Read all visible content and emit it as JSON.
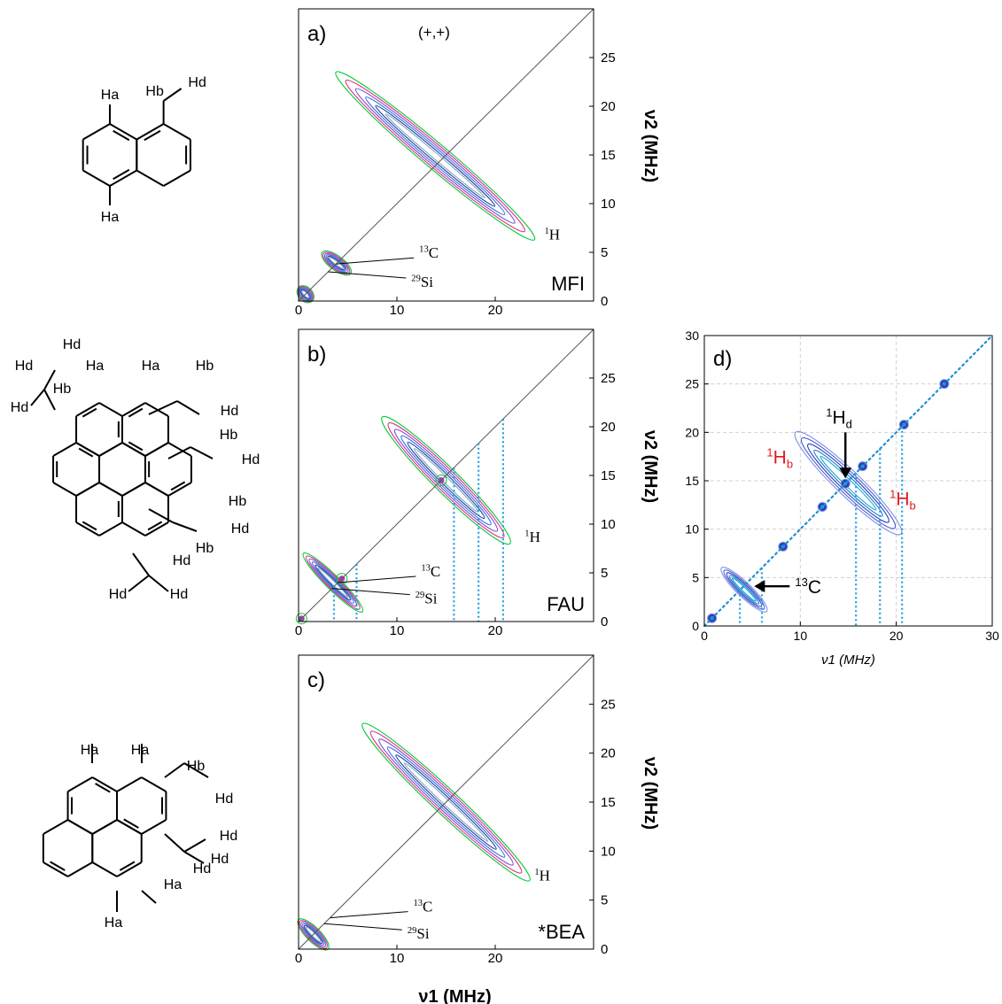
{
  "molecules": [
    {
      "labels": {
        "a1": "Ha",
        "a2": "Ha",
        "b": "Hb",
        "d": "Hd"
      }
    },
    {
      "labels": {
        "d1": "Hd",
        "d2": "Hd",
        "d3": "Hd",
        "a1": "Ha",
        "a2": "Ha",
        "b1": "Hb",
        "b2": "Hb",
        "b3": "Hb",
        "b4": "Hb",
        "b5": "Hb",
        "b6": "Hb",
        "d4": "Hd",
        "d5": "Hd",
        "d6": "Hd",
        "d7": "Hd",
        "d8": "Hd",
        "d9": "Hd"
      }
    },
    {
      "labels": {
        "a1": "Ha",
        "a2": "Ha",
        "a3": "Ha",
        "a4": "Ha",
        "b": "Hb",
        "d1": "Hd",
        "d2": "Hd",
        "d3": "Hd",
        "d4": "Hd"
      }
    }
  ],
  "chart_data": [
    {
      "id": "a",
      "type": "contour",
      "panel_label": "a)",
      "sign_label": "(+,+)",
      "sample": "MFI",
      "xlabel": "",
      "ylabel": "ν2 (MHz)",
      "xlim": [
        0,
        30
      ],
      "ylim": [
        0,
        30
      ],
      "xticks": [
        "0",
        "10",
        "20"
      ],
      "yticks": [
        "0",
        "5",
        "10",
        "15",
        "20",
        "25"
      ],
      "diagonal": [
        [
          0,
          0
        ],
        [
          30,
          30
        ]
      ],
      "ridges": [
        {
          "name": "1H",
          "from": [
            3.8,
            23.5
          ],
          "to": [
            24.0,
            6.3
          ]
        },
        {
          "name": "",
          "from": [
            2.4,
            5.0
          ],
          "to": [
            5.3,
            2.8
          ]
        },
        {
          "name": "",
          "from": [
            0.0,
            1.4
          ],
          "to": [
            1.4,
            0.0
          ]
        }
      ],
      "annotations": [
        {
          "text": "1H",
          "sup": "1",
          "base": "H",
          "at": [
            25.0,
            6.3
          ]
        },
        {
          "text": "13C",
          "sup": "13",
          "base": "C",
          "target": [
            3.8,
            3.8
          ]
        },
        {
          "text": "29Si",
          "sup": "29",
          "base": "Si",
          "target": [
            3.0,
            3.0
          ]
        }
      ],
      "guides": []
    },
    {
      "id": "b",
      "type": "contour",
      "panel_label": "b)",
      "sign_label": "",
      "sample": "FAU",
      "xlabel": "",
      "ylabel": "ν2 (MHz)",
      "xlim": [
        0,
        30
      ],
      "ylim": [
        0,
        30
      ],
      "xticks": [
        "0",
        "10",
        "20"
      ],
      "yticks": [
        "0",
        "5",
        "10",
        "15",
        "20",
        "25"
      ],
      "diagonal": [
        [
          0,
          0
        ],
        [
          30,
          30
        ]
      ],
      "ridges": [
        {
          "name": "1H",
          "from": [
            8.5,
            21.0
          ],
          "to": [
            21.5,
            8.0
          ]
        },
        {
          "name": "",
          "from": [
            0.5,
            7.0
          ],
          "to": [
            6.5,
            1.0
          ]
        }
      ],
      "peaks": [
        [
          14.5,
          14.5
        ],
        [
          0.3,
          0.3
        ],
        [
          4.4,
          4.4
        ]
      ],
      "annotations": [
        {
          "text": "1H",
          "sup": "1",
          "base": "H",
          "at": [
            23.0,
            8.2
          ]
        },
        {
          "text": "13C",
          "sup": "13",
          "base": "C",
          "target": [
            4.0,
            4.0
          ]
        },
        {
          "text": "29Si",
          "sup": "29",
          "base": "Si",
          "target": [
            3.4,
            3.4
          ]
        }
      ],
      "guides": [
        3.6,
        5.9,
        15.8,
        18.3,
        20.8
      ]
    },
    {
      "id": "c",
      "type": "contour",
      "panel_label": "c)",
      "sign_label": "",
      "sample": "*BEA",
      "xlabel": "ν1 (MHz)",
      "ylabel": "ν2 (MHz)",
      "xlim": [
        0,
        30
      ],
      "ylim": [
        0,
        30
      ],
      "xticks": [
        "0",
        "10",
        "20"
      ],
      "yticks": [
        "0",
        "5",
        "10",
        "15",
        "20",
        "25"
      ],
      "diagonal": [
        [
          0,
          0
        ],
        [
          30,
          30
        ]
      ],
      "ridges": [
        {
          "name": "1H",
          "from": [
            6.5,
            23.0
          ],
          "to": [
            23.5,
            7.0
          ]
        },
        {
          "name": "",
          "from": [
            0.0,
            3.0
          ],
          "to": [
            3.0,
            0.0
          ]
        }
      ],
      "annotations": [
        {
          "text": "1H",
          "sup": "1",
          "base": "H",
          "at": [
            24.0,
            7.0
          ]
        },
        {
          "text": "13C",
          "sup": "13",
          "base": "C",
          "target": [
            3.2,
            3.2
          ]
        },
        {
          "text": "29Si",
          "sup": "29",
          "base": "Si",
          "target": [
            2.6,
            2.6
          ]
        }
      ],
      "guides": []
    },
    {
      "id": "d",
      "type": "contour",
      "panel_label": "d)",
      "xlabel": "ν1 (MHz)",
      "ylabel": "",
      "xlim": [
        0,
        30
      ],
      "ylim": [
        0,
        30
      ],
      "xticks": [
        "0",
        "10",
        "20",
        "30"
      ],
      "yticks": [
        "0",
        "5",
        "10",
        "15",
        "20",
        "25",
        "30"
      ],
      "grid": true,
      "diagonal": [
        [
          0,
          0
        ],
        [
          30,
          30
        ]
      ],
      "ridges": [
        {
          "name": "1Hb",
          "from": [
            9.5,
            20.0
          ],
          "to": [
            20.5,
            9.5
          ]
        },
        {
          "name": "13C",
          "from": [
            1.8,
            6.0
          ],
          "to": [
            6.5,
            1.5
          ]
        }
      ],
      "peaks": [
        [
          14.7,
          14.7
        ],
        [
          20.8,
          20.8
        ],
        [
          8.2,
          8.2
        ],
        [
          12.3,
          12.3
        ],
        [
          16.5,
          16.5
        ],
        [
          25.0,
          25.0
        ],
        [
          0.8,
          0.8
        ]
      ],
      "annotations": [
        {
          "text": "1Hd",
          "sup": "1",
          "base": "H",
          "sub": "d",
          "color": "#000000"
        },
        {
          "text": "1Hb",
          "sup": "1",
          "base": "H",
          "sub": "b",
          "color": "#e31a1c"
        },
        {
          "text": "1Hb",
          "sup": "1",
          "base": "H",
          "sub": "b",
          "color": "#e31a1c"
        },
        {
          "text": "13C",
          "sup": "13",
          "base": "C",
          "color": "#000000"
        }
      ],
      "guides": [
        3.7,
        6.0,
        15.8,
        18.3,
        20.6
      ]
    }
  ]
}
